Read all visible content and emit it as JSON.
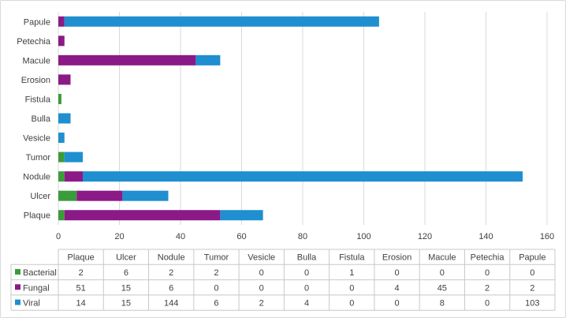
{
  "chart_data": {
    "type": "bar",
    "orientation": "horizontal",
    "stacked": true,
    "categories": [
      "Plaque",
      "Ulcer",
      "Nodule",
      "Tumor",
      "Vesicle",
      "Bulla",
      "Fistula",
      "Erosion",
      "Macule",
      "Petechia",
      "Papule"
    ],
    "series": [
      {
        "name": "Bacterial",
        "color": "#3a9c3a",
        "values": [
          2,
          6,
          2,
          2,
          0,
          0,
          1,
          0,
          0,
          0,
          0
        ]
      },
      {
        "name": "Fungal",
        "color": "#8b1a87",
        "values": [
          51,
          15,
          6,
          0,
          0,
          0,
          0,
          4,
          45,
          2,
          2
        ]
      },
      {
        "name": "Viral",
        "color": "#1f8fd0",
        "values": [
          14,
          15,
          144,
          6,
          2,
          4,
          0,
          0,
          8,
          0,
          103
        ]
      }
    ],
    "xlim": [
      0,
      160
    ],
    "xticks": [
      0,
      20,
      40,
      60,
      80,
      100,
      120,
      140,
      160
    ],
    "grid": true,
    "legend": "data-table-below"
  }
}
